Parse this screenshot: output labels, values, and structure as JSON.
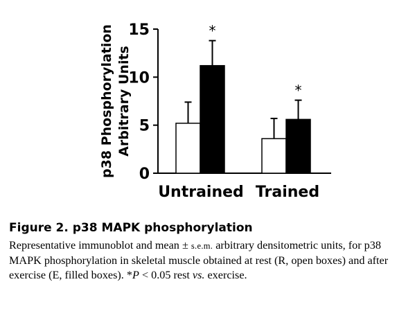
{
  "chart_data": {
    "type": "bar",
    "categories": [
      "Untrained",
      "Trained"
    ],
    "series": [
      {
        "values": [
          5.2,
          3.6
        ],
        "errors": [
          2.2,
          2.1
        ],
        "fill": "#ffffff"
      },
      {
        "values": [
          11.2,
          5.6
        ],
        "errors": [
          2.6,
          2.0
        ],
        "fill": "#000000"
      }
    ],
    "ylabel_line1": "p38 Phosphorylation",
    "ylabel_line2": "Arbitrary Units",
    "ylim": [
      0,
      15
    ],
    "yticks": [
      "0",
      "5",
      "10",
      "15"
    ],
    "significance_marker": "*",
    "grid": false
  },
  "caption": {
    "title": "Figure 2. p38 MAPK phosphorylation",
    "text_1": "Representative immunoblot and mean ± ",
    "sem": "s.e.m.",
    "text_2": " arbitrary densitometric units, for p38 MAPK phosphorylation in skeletal muscle obtained at rest (R, open boxes) and after exercise (E, filled boxes). *",
    "p": "P",
    "text_3": " < 0.05 rest ",
    "vs": "vs.",
    "text_4": " exercise."
  }
}
